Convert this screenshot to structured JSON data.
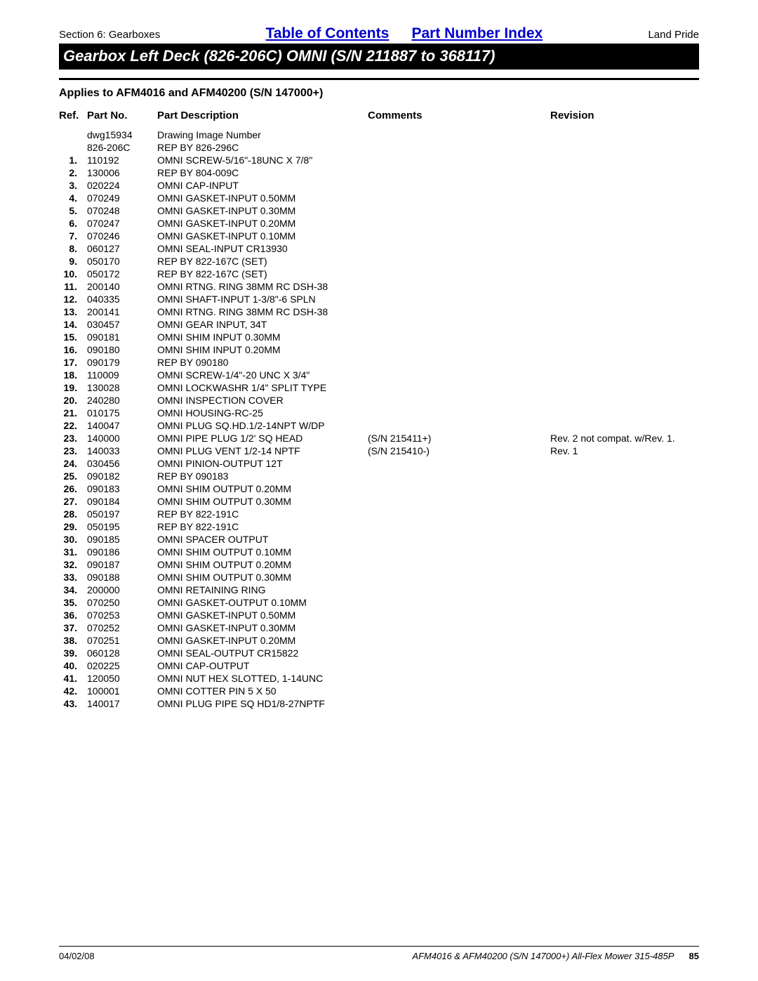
{
  "header": {
    "section": "Section 6: Gearboxes",
    "link_toc": "Table of Contents",
    "link_pni": "Part Number Index",
    "brand": "Land Pride",
    "title": "Gearbox Left Deck (826-206C) OMNI (S/N 211887 to 368117)",
    "applies": "Applies to AFM4016 and AFM40200 (S/N 147000+)"
  },
  "columns": {
    "ref": "Ref.",
    "part_no": "Part No.",
    "desc": "Part Description",
    "comments": "Comments",
    "revision": "Revision"
  },
  "rows": [
    {
      "ref": "",
      "pn": "dwg15934",
      "desc": "Drawing Image Number",
      "comm": "",
      "rev": ""
    },
    {
      "ref": "",
      "pn": "826-206C",
      "desc": "REP BY 826-296C",
      "comm": "",
      "rev": ""
    },
    {
      "ref": "1.",
      "pn": "110192",
      "desc": "OMNI SCREW-5/16\"-18UNC X 7/8\"",
      "comm": "",
      "rev": ""
    },
    {
      "ref": "2.",
      "pn": "130006",
      "desc": "REP BY 804-009C",
      "comm": "",
      "rev": ""
    },
    {
      "ref": "3.",
      "pn": "020224",
      "desc": "OMNI CAP-INPUT",
      "comm": "",
      "rev": ""
    },
    {
      "ref": "4.",
      "pn": "070249",
      "desc": "OMNI GASKET-INPUT 0.50MM",
      "comm": "",
      "rev": ""
    },
    {
      "ref": "5.",
      "pn": "070248",
      "desc": "OMNI GASKET-INPUT 0.30MM",
      "comm": "",
      "rev": ""
    },
    {
      "ref": "6.",
      "pn": "070247",
      "desc": "OMNI GASKET-INPUT 0.20MM",
      "comm": "",
      "rev": ""
    },
    {
      "ref": "7.",
      "pn": "070246",
      "desc": "OMNI GASKET-INPUT 0.10MM",
      "comm": "",
      "rev": ""
    },
    {
      "ref": "8.",
      "pn": "060127",
      "desc": "OMNI SEAL-INPUT CR13930",
      "comm": "",
      "rev": ""
    },
    {
      "ref": "9.",
      "pn": "050170",
      "desc": "REP BY 822-167C (SET)",
      "comm": "",
      "rev": ""
    },
    {
      "ref": "10.",
      "pn": "050172",
      "desc": "REP BY 822-167C (SET)",
      "comm": "",
      "rev": ""
    },
    {
      "ref": "11.",
      "pn": "200140",
      "desc": "OMNI RTNG. RING 38MM RC DSH-38",
      "comm": "",
      "rev": ""
    },
    {
      "ref": "12.",
      "pn": "040335",
      "desc": "OMNI SHAFT-INPUT 1-3/8\"-6 SPLN",
      "comm": "",
      "rev": ""
    },
    {
      "ref": "13.",
      "pn": "200141",
      "desc": "OMNI RTNG. RING 38MM RC DSH-38",
      "comm": "",
      "rev": ""
    },
    {
      "ref": "14.",
      "pn": "030457",
      "desc": "OMNI GEAR INPUT, 34T",
      "comm": "",
      "rev": ""
    },
    {
      "ref": "15.",
      "pn": "090181",
      "desc": "OMNI SHIM INPUT 0.30MM",
      "comm": "",
      "rev": ""
    },
    {
      "ref": "16.",
      "pn": "090180",
      "desc": "OMNI SHIM INPUT 0.20MM",
      "comm": "",
      "rev": ""
    },
    {
      "ref": "17.",
      "pn": "090179",
      "desc": "REP BY 090180",
      "comm": "",
      "rev": ""
    },
    {
      "ref": "18.",
      "pn": "110009",
      "desc": "OMNI SCREW-1/4\"-20 UNC X 3/4\"",
      "comm": "",
      "rev": ""
    },
    {
      "ref": "19.",
      "pn": "130028",
      "desc": "OMNI LOCKWASHR 1/4\" SPLIT TYPE",
      "comm": "",
      "rev": ""
    },
    {
      "ref": "20.",
      "pn": "240280",
      "desc": "OMNI INSPECTION COVER",
      "comm": "",
      "rev": ""
    },
    {
      "ref": "21.",
      "pn": "010175",
      "desc": "OMNI HOUSING-RC-25",
      "comm": "",
      "rev": ""
    },
    {
      "ref": "22.",
      "pn": "140047",
      "desc": "OMNI PLUG SQ.HD.1/2-14NPT W/DP",
      "comm": "",
      "rev": ""
    },
    {
      "ref": "23.",
      "pn": "140000",
      "desc": "OMNI PIPE PLUG 1/2' SQ HEAD",
      "comm": "(S/N 215411+)",
      "rev": "Rev. 2 not compat. w/Rev. 1."
    },
    {
      "ref": "23.",
      "pn": "140033",
      "desc": "OMNI PLUG VENT 1/2-14 NPTF",
      "comm": "(S/N 215410-)",
      "rev": "Rev. 1"
    },
    {
      "ref": "24.",
      "pn": "030456",
      "desc": "OMNI PINION-OUTPUT 12T",
      "comm": "",
      "rev": ""
    },
    {
      "ref": "25.",
      "pn": "090182",
      "desc": "REP BY 090183",
      "comm": "",
      "rev": ""
    },
    {
      "ref": "26.",
      "pn": "090183",
      "desc": "OMNI SHIM OUTPUT 0.20MM",
      "comm": "",
      "rev": ""
    },
    {
      "ref": "27.",
      "pn": "090184",
      "desc": "OMNI SHIM OUTPUT 0.30MM",
      "comm": "",
      "rev": ""
    },
    {
      "ref": "28.",
      "pn": "050197",
      "desc": "REP BY 822-191C",
      "comm": "",
      "rev": ""
    },
    {
      "ref": "29.",
      "pn": "050195",
      "desc": "REP BY 822-191C",
      "comm": "",
      "rev": ""
    },
    {
      "ref": "30.",
      "pn": "090185",
      "desc": "OMNI SPACER OUTPUT",
      "comm": "",
      "rev": ""
    },
    {
      "ref": "31.",
      "pn": "090186",
      "desc": "OMNI SHIM OUTPUT 0.10MM",
      "comm": "",
      "rev": ""
    },
    {
      "ref": "32.",
      "pn": "090187",
      "desc": "OMNI SHIM OUTPUT 0.20MM",
      "comm": "",
      "rev": ""
    },
    {
      "ref": "33.",
      "pn": "090188",
      "desc": "OMNI SHIM OUTPUT 0.30MM",
      "comm": "",
      "rev": ""
    },
    {
      "ref": "34.",
      "pn": "200000",
      "desc": "OMNI RETAINING RING",
      "comm": "",
      "rev": ""
    },
    {
      "ref": "35.",
      "pn": "070250",
      "desc": "OMNI GASKET-OUTPUT 0.10MM",
      "comm": "",
      "rev": ""
    },
    {
      "ref": "36.",
      "pn": "070253",
      "desc": "OMNI GASKET-INPUT 0.50MM",
      "comm": "",
      "rev": ""
    },
    {
      "ref": "37.",
      "pn": "070252",
      "desc": "OMNI GASKET-INPUT 0.30MM",
      "comm": "",
      "rev": ""
    },
    {
      "ref": "38.",
      "pn": "070251",
      "desc": "OMNI GASKET-INPUT 0.20MM",
      "comm": "",
      "rev": ""
    },
    {
      "ref": "39.",
      "pn": "060128",
      "desc": "OMNI SEAL-OUTPUT CR15822",
      "comm": "",
      "rev": ""
    },
    {
      "ref": "40.",
      "pn": "020225",
      "desc": "OMNI CAP-OUTPUT",
      "comm": "",
      "rev": ""
    },
    {
      "ref": "41.",
      "pn": "120050",
      "desc": "OMNI NUT HEX SLOTTED, 1-14UNC",
      "comm": "",
      "rev": ""
    },
    {
      "ref": "42.",
      "pn": "100001",
      "desc": "OMNI COTTER PIN 5 X 50",
      "comm": "",
      "rev": ""
    },
    {
      "ref": "43.",
      "pn": "140017",
      "desc": "OMNI PLUG PIPE SQ HD1/8-27NPTF",
      "comm": "",
      "rev": ""
    }
  ],
  "footer": {
    "date": "04/02/08",
    "mid": "AFM4016 & AFM40200 (S/N 147000+) All-Flex Mower 315-485P",
    "page": "85"
  }
}
